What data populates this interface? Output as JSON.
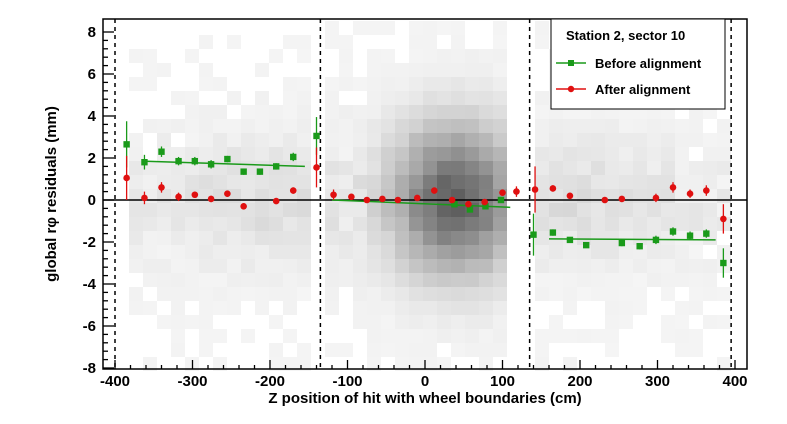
{
  "chart_data": {
    "type": "scatter",
    "xlabel": "Z position of hit with wheel boundaries (cm)",
    "ylabel": "global rφ residuals (mm)",
    "xlim": [
      -410,
      410
    ],
    "ylim": [
      -8,
      8.4
    ],
    "x_ticks": [
      -400,
      -300,
      -200,
      -100,
      0,
      100,
      200,
      300,
      400
    ],
    "x_tick_labels": [
      "-400",
      "-300",
      "-200",
      "-100",
      "0",
      "100",
      "200",
      "300",
      "400"
    ],
    "y_ticks": [
      -8,
      -6,
      -4,
      -2,
      0,
      2,
      4,
      6,
      8
    ],
    "y_tick_labels": [
      "-8",
      "-6",
      "-4",
      "-2",
      "0",
      "2",
      "4",
      "6",
      "8"
    ],
    "zero_line": true,
    "wheel_boundaries": [
      -400,
      -135,
      135,
      395
    ],
    "background": "2D hit-density histogram (grayscale)",
    "legend": {
      "title": "Station 2, sector 10",
      "placement": "top-right",
      "entries": [
        "Before alignment",
        "After alignment"
      ]
    },
    "colors": {
      "before": "#1a9a1a",
      "after": "#e01010",
      "boundary": "#000000",
      "axis": "#000000"
    },
    "series": [
      {
        "name": "Before alignment",
        "marker": "square",
        "points": [
          {
            "x": -385,
            "y": 2.65,
            "err": 1.1
          },
          {
            "x": -362,
            "y": 1.8,
            "err": 0.35
          },
          {
            "x": -340,
            "y": 2.3,
            "err": 0.25
          },
          {
            "x": -318,
            "y": 1.85,
            "err": 0.2
          },
          {
            "x": -297,
            "y": 1.85,
            "err": 0.2
          },
          {
            "x": -276,
            "y": 1.7,
            "err": 0.2
          },
          {
            "x": -255,
            "y": 1.95,
            "err": 0.15
          },
          {
            "x": -234,
            "y": 1.35,
            "err": 0.15
          },
          {
            "x": -213,
            "y": 1.35,
            "err": 0.15
          },
          {
            "x": -192,
            "y": 1.6,
            "err": 0.15
          },
          {
            "x": -170,
            "y": 2.05,
            "err": 0.2
          },
          {
            "x": -140,
            "y": 3.05,
            "err": 0.9
          },
          {
            "x": 38,
            "y": -0.2,
            "err": 0.1
          },
          {
            "x": 58,
            "y": -0.45,
            "err": 0.1
          },
          {
            "x": 78,
            "y": -0.3,
            "err": 0.1
          },
          {
            "x": 98,
            "y": 0.0,
            "err": 0.1
          },
          {
            "x": 140,
            "y": -1.65,
            "err": 1.0
          },
          {
            "x": 165,
            "y": -1.55,
            "err": 0.15
          },
          {
            "x": 187,
            "y": -1.9,
            "err": 0.1
          },
          {
            "x": 208,
            "y": -2.15,
            "err": 0.1
          },
          {
            "x": 254,
            "y": -2.05,
            "err": 0.15
          },
          {
            "x": 277,
            "y": -2.2,
            "err": 0.15
          },
          {
            "x": 298,
            "y": -1.9,
            "err": 0.2
          },
          {
            "x": 320,
            "y": -1.5,
            "err": 0.2
          },
          {
            "x": 342,
            "y": -1.7,
            "err": 0.2
          },
          {
            "x": 363,
            "y": -1.6,
            "err": 0.2
          },
          {
            "x": 385,
            "y": -3.0,
            "err": 0.7
          }
        ],
        "fits": [
          {
            "x": [
              -365,
              -155
            ],
            "y": [
              1.85,
              1.6
            ]
          },
          {
            "x": [
              -120,
              110
            ],
            "y": [
              0.0,
              -0.35
            ]
          },
          {
            "x": [
              160,
              375
            ],
            "y": [
              -1.85,
              -1.9
            ]
          }
        ]
      },
      {
        "name": "After alignment",
        "marker": "circle",
        "points": [
          {
            "x": -385,
            "y": 1.05,
            "err": 1.05
          },
          {
            "x": -362,
            "y": 0.1,
            "err": 0.3
          },
          {
            "x": -340,
            "y": 0.6,
            "err": 0.25
          },
          {
            "x": -318,
            "y": 0.15,
            "err": 0.2
          },
          {
            "x": -297,
            "y": 0.25,
            "err": 0.15
          },
          {
            "x": -276,
            "y": 0.05,
            "err": 0.15
          },
          {
            "x": -255,
            "y": 0.3,
            "err": 0.15
          },
          {
            "x": -234,
            "y": -0.3,
            "err": 0.15
          },
          {
            "x": -192,
            "y": -0.05,
            "err": 0.1
          },
          {
            "x": -170,
            "y": 0.45,
            "err": 0.15
          },
          {
            "x": -140,
            "y": 1.55,
            "err": 0.95
          },
          {
            "x": -118,
            "y": 0.25,
            "err": 0.25
          },
          {
            "x": -95,
            "y": 0.15,
            "err": 0.1
          },
          {
            "x": -75,
            "y": 0.0,
            "err": 0.1
          },
          {
            "x": -55,
            "y": 0.05,
            "err": 0.1
          },
          {
            "x": -35,
            "y": 0.0,
            "err": 0.1
          },
          {
            "x": -10,
            "y": 0.1,
            "err": 0.1
          },
          {
            "x": 12,
            "y": 0.45,
            "err": 0.1
          },
          {
            "x": 35,
            "y": 0.0,
            "err": 0.1
          },
          {
            "x": 56,
            "y": -0.2,
            "err": 0.1
          },
          {
            "x": 77,
            "y": -0.1,
            "err": 0.1
          },
          {
            "x": 100,
            "y": 0.35,
            "err": 0.1
          },
          {
            "x": 118,
            "y": 0.4,
            "err": 0.25
          },
          {
            "x": 142,
            "y": 0.5,
            "err": 1.1
          },
          {
            "x": 165,
            "y": 0.55,
            "err": 0.15
          },
          {
            "x": 187,
            "y": 0.2,
            "err": 0.1
          },
          {
            "x": 232,
            "y": 0.0,
            "err": 0.1
          },
          {
            "x": 254,
            "y": 0.05,
            "err": 0.1
          },
          {
            "x": 298,
            "y": 0.1,
            "err": 0.2
          },
          {
            "x": 320,
            "y": 0.6,
            "err": 0.25
          },
          {
            "x": 342,
            "y": 0.3,
            "err": 0.2
          },
          {
            "x": 363,
            "y": 0.45,
            "err": 0.25
          },
          {
            "x": 385,
            "y": -0.9,
            "err": 0.7
          }
        ]
      }
    ]
  }
}
